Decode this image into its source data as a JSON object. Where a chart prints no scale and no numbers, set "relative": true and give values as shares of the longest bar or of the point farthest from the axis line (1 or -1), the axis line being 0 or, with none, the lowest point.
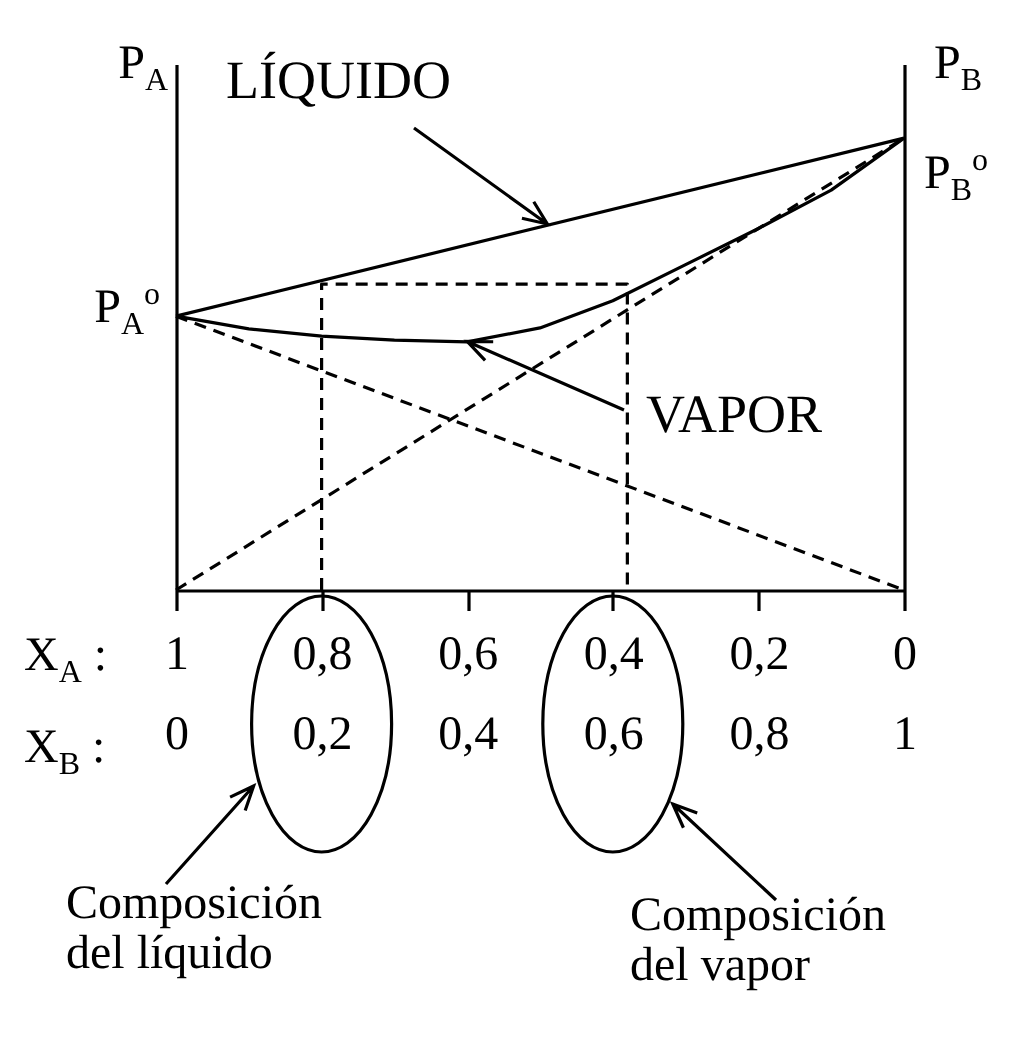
{
  "chart_data": {
    "type": "line",
    "relative": true,
    "xlabel": "X$_{B}$ :",
    "x2label": "X$_{A}$ :",
    "ylabel": "P$_{A}$",
    "y2label": "P$_{B}$",
    "xlim": [
      0,
      1
    ],
    "xticks": [
      {
        "value": 0,
        "label": "0"
      },
      {
        "value": 0.2,
        "label": "0,2"
      },
      {
        "value": 0.4,
        "label": "0,4"
      },
      {
        "value": 0.6,
        "label": "0,6"
      },
      {
        "value": 0.8,
        "label": "0,8"
      },
      {
        "value": 1,
        "label": "1"
      }
    ],
    "x2lim": [
      1,
      0
    ],
    "x2ticks": [
      {
        "value": 1,
        "label": "1"
      },
      {
        "value": 0.8,
        "label": "0,8"
      },
      {
        "value": 0.6,
        "label": "0,6"
      },
      {
        "value": 0.4,
        "label": "0,4"
      },
      {
        "value": 0.2,
        "label": "0,2"
      },
      {
        "value": 0,
        "label": "0"
      }
    ],
    "series": [
      {
        "color": "#000000",
        "line_style": "solid",
        "x": [
          0,
          1
        ],
        "values": [
          0.606,
          1
        ]
      },
      {
        "color": "#000000",
        "line_style": "solid",
        "x": [
          0,
          0.1,
          0.2,
          0.3,
          0.4,
          0.5,
          0.6,
          0.7,
          0.8,
          0.9,
          1
        ],
        "values": [
          0.606,
          0.578,
          0.562,
          0.553,
          0.549,
          0.58,
          0.64,
          0.72,
          0.8,
          0.885,
          1
        ]
      },
      {
        "color": "#000000",
        "line_style": "dashed",
        "x": [
          0,
          1
        ],
        "values": [
          0.606,
          0
        ]
      },
      {
        "color": "#000000",
        "line_style": "dashed",
        "x": [
          0,
          1
        ],
        "values": [
          0,
          1
        ]
      },
      {
        "color": "#000000",
        "line_style": "dashed",
        "x": [
          0.2,
          0.2,
          0.62,
          0.62
        ],
        "values": [
          0,
          0.677,
          0.677,
          0
        ]
      }
    ],
    "annotations": [
      {
        "text": "P$_{A}$$^{o}$",
        "x": 0,
        "y": 0.606
      },
      {
        "text": "P$_{B}$$^{o}$",
        "x": 1,
        "y": 1
      },
      {
        "text": "LÍQUIDO",
        "x": 0.51,
        "y": 0.81
      },
      {
        "text": "VAPOR",
        "x": 0.4,
        "y": 0.55
      },
      "Composición\ndel líquido",
      "Composición\ndel vapor"
    ]
  }
}
